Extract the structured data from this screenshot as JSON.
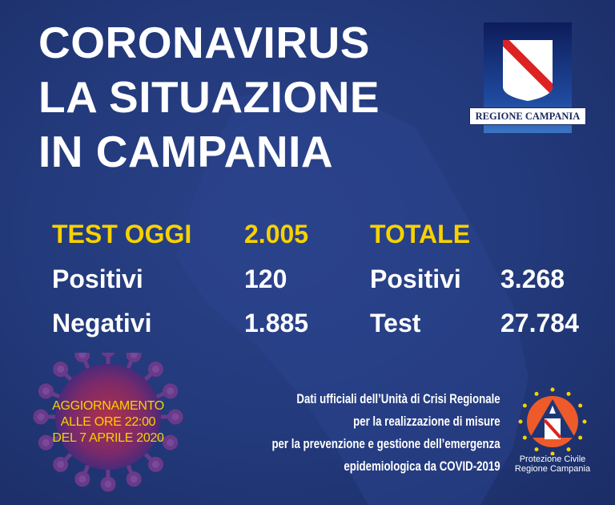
{
  "title": {
    "line1": "CORONAVIRUS",
    "line2": "LA SITUAZIONE",
    "line3": "IN CAMPANIA"
  },
  "logo": {
    "text": "REGIONE CAMPANIA"
  },
  "today": {
    "header": "TEST OGGI",
    "tests": "2.005",
    "positive_label": "Positivi",
    "positive": "120",
    "negative_label": "Negativi",
    "negative": "1.885"
  },
  "total": {
    "header": "TOTALE",
    "positive_label": "Positivi",
    "positive": "3.268",
    "test_label": "Test",
    "tests": "27.784"
  },
  "update": {
    "line1": "AGGIORNAMENTO",
    "line2": "ALLE ORE 22:00",
    "line3": "DEL 7 APRILE 2020"
  },
  "footer": {
    "line1": "Dati ufficiali dell’Unità di Crisi Regionale",
    "line2": "per la realizzazione di misure",
    "line3": "per la prevenzione e gestione dell’emergenza",
    "line4": "epidemiologica da COVID-2019"
  },
  "protezione": {
    "line1": "Protezione Civile",
    "line2": "Regione Campania"
  },
  "colors": {
    "background": "#233a7c",
    "accent": "#f7d200",
    "text": "#ffffff"
  }
}
